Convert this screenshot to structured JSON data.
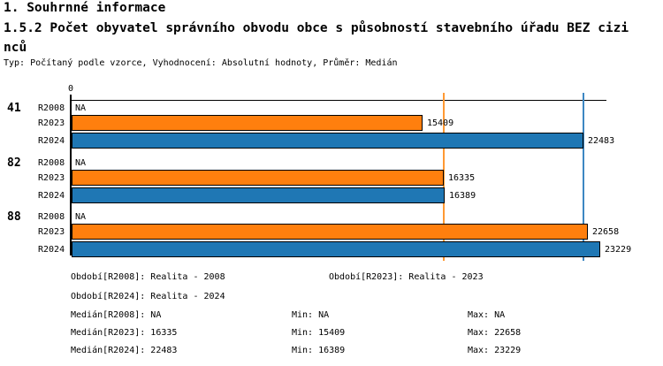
{
  "header": {
    "title1": "1. Souhrnné informace",
    "title2": "1.5.2 Počet obyvatel správního obvodu obce s působností stavebního úřadu BEZ cizinců",
    "meta": "Typ: Počítaný podle vzorce, Vyhodnocení: Absolutní hodnoty, Průměr: Medián"
  },
  "colors": {
    "orange": "#ff7f0e",
    "blue": "#1f77b4",
    "orange_line": "#ff9933",
    "blue_line": "#3d87c3",
    "axis": "#000000"
  },
  "chart_data": {
    "type": "bar",
    "orientation": "horizontal",
    "title": "1.5.2 Počet obyvatel správního obvodu obce s působností stavebního úřadu BEZ cizinců",
    "x_axis": {
      "zero_label": "0",
      "min": 0
    },
    "categories": [
      "41",
      "82",
      "88"
    ],
    "series_labels": [
      "R2008",
      "R2023",
      "R2024"
    ],
    "groups": [
      {
        "label": "41",
        "rows": [
          {
            "series": "R2008",
            "value": null,
            "display": "NA",
            "color": null
          },
          {
            "series": "R2023",
            "value": 15409,
            "display": "15409",
            "color": "orange"
          },
          {
            "series": "R2024",
            "value": 22483,
            "display": "22483",
            "color": "blue"
          }
        ]
      },
      {
        "label": "82",
        "rows": [
          {
            "series": "R2008",
            "value": null,
            "display": "NA",
            "color": null
          },
          {
            "series": "R2023",
            "value": 16335,
            "display": "16335",
            "color": "orange"
          },
          {
            "series": "R2024",
            "value": 16389,
            "display": "16389",
            "color": "blue"
          }
        ]
      },
      {
        "label": "88",
        "rows": [
          {
            "series": "R2008",
            "value": null,
            "display": "NA",
            "color": null
          },
          {
            "series": "R2023",
            "value": 22658,
            "display": "22658",
            "color": "orange"
          },
          {
            "series": "R2024",
            "value": 23229,
            "display": "23229",
            "color": "blue"
          }
        ]
      }
    ],
    "reference_lines": [
      {
        "name": "median-R2023",
        "value": 16335,
        "color": "orange_line"
      },
      {
        "name": "median-R2024",
        "value": 22483,
        "color": "blue_line"
      }
    ]
  },
  "legend": {
    "period_rows": [
      [
        "Období[R2008]: Realita - 2008",
        "Období[R2023]: Realita - 2023"
      ],
      [
        "Období[R2024]: Realita - 2024"
      ]
    ],
    "stat_rows": [
      [
        "Medián[R2008]: NA",
        "Min: NA",
        "Max: NA"
      ],
      [
        "Medián[R2023]: 16335",
        "Min: 15409",
        "Max: 22658"
      ],
      [
        "Medián[R2024]: 22483",
        "Min: 16389",
        "Max: 23229"
      ]
    ]
  }
}
